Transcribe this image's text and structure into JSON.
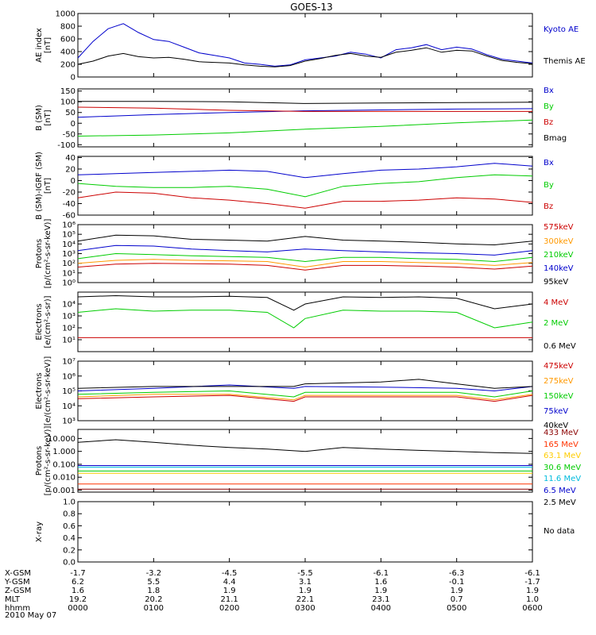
{
  "title": "GOES-13",
  "footer": {
    "rows": [
      {
        "label": "X-GSM",
        "values": [
          "-1.7",
          "-3.2",
          "-4.5",
          "-5.5",
          "-6.1",
          "-6.3",
          "-6.1"
        ]
      },
      {
        "label": "Y-GSM",
        "values": [
          "6.2",
          "5.5",
          "4.4",
          "3.1",
          "1.6",
          "-0.1",
          "-1.7"
        ]
      },
      {
        "label": "Z-GSM",
        "values": [
          "1.6",
          "1.8",
          "1.9",
          "1.9",
          "1.9",
          "1.9",
          "1.9"
        ]
      },
      {
        "label": "MLT",
        "values": [
          "19.2",
          "20.2",
          "21.1",
          "22.1",
          "23.1",
          "0.7",
          "1.0"
        ]
      },
      {
        "label": "hhmm",
        "values": [
          "0000",
          "0100",
          "0200",
          "0300",
          "0400",
          "0500",
          "0600"
        ]
      }
    ],
    "date": "2010 May 07"
  },
  "chart_data": [
    {
      "type": "line",
      "scale": "linear",
      "ylabel": [
        "AE index",
        "[nT]"
      ],
      "ylim": [
        0,
        1000
      ],
      "yticks": [
        "0",
        "200",
        "400",
        "600",
        "800",
        "1000"
      ],
      "series": [
        {
          "name": "Kyoto AE",
          "color": "#0000cc",
          "x": [
            0,
            0.2,
            0.4,
            0.6,
            0.8,
            1.0,
            1.2,
            1.4,
            1.6,
            1.8,
            2.0,
            2.2,
            2.4,
            2.6,
            2.8,
            3.0,
            3.2,
            3.4,
            3.6,
            3.8,
            4.0,
            4.2,
            4.4,
            4.6,
            4.8,
            5.0,
            5.2,
            5.4,
            5.6,
            5.8,
            6.0
          ],
          "y": [
            300,
            560,
            760,
            840,
            700,
            590,
            560,
            470,
            380,
            340,
            300,
            220,
            200,
            170,
            190,
            270,
            300,
            330,
            390,
            360,
            300,
            430,
            460,
            510,
            430,
            470,
            440,
            350,
            280,
            250,
            220
          ]
        },
        {
          "name": "Themis AE",
          "color": "#000000",
          "x": [
            0,
            0.2,
            0.4,
            0.6,
            0.8,
            1.0,
            1.2,
            1.4,
            1.6,
            1.8,
            2.0,
            2.2,
            2.4,
            2.6,
            2.8,
            3.0,
            3.2,
            3.4,
            3.6,
            3.8,
            4.0,
            4.2,
            4.4,
            4.6,
            4.8,
            5.0,
            5.2,
            5.4,
            5.6,
            5.8,
            6.0
          ],
          "y": [
            200,
            250,
            330,
            370,
            320,
            300,
            310,
            280,
            240,
            230,
            220,
            190,
            170,
            160,
            180,
            250,
            290,
            340,
            370,
            330,
            310,
            390,
            420,
            460,
            390,
            420,
            410,
            330,
            260,
            230,
            210
          ]
        }
      ]
    },
    {
      "type": "line",
      "scale": "linear",
      "ylabel": [
        "B (SM)",
        "[nT]"
      ],
      "ylim": [
        -110,
        160
      ],
      "yticks": [
        "-100",
        "-50",
        "0",
        "50",
        "100",
        "150"
      ],
      "series": [
        {
          "name": "Bx",
          "color": "#0000cc",
          "x": [
            0,
            1,
            2,
            3,
            4,
            5,
            6
          ],
          "y": [
            28,
            40,
            50,
            58,
            62,
            66,
            68
          ]
        },
        {
          "name": "By",
          "color": "#00cc00",
          "x": [
            0,
            1,
            2,
            3,
            4,
            5,
            6
          ],
          "y": [
            -60,
            -55,
            -45,
            -28,
            -15,
            2,
            15
          ]
        },
        {
          "name": "Bz",
          "color": "#cc0000",
          "x": [
            0,
            1,
            2,
            3,
            4,
            5,
            6
          ],
          "y": [
            75,
            70,
            60,
            55,
            55,
            55,
            55
          ]
        },
        {
          "name": "Bmag",
          "color": "#000000",
          "x": [
            0,
            1,
            2,
            3,
            4,
            5,
            6
          ],
          "y": [
            102,
            102,
            100,
            92,
            94,
            96,
            98
          ]
        }
      ]
    },
    {
      "type": "line",
      "scale": "linear",
      "ylabel": [
        "B (SM)-IGRF (SM)",
        "[nT]"
      ],
      "ylim": [
        -60,
        42
      ],
      "yticks": [
        "-60",
        "-40",
        "-20",
        "0",
        "20",
        "40"
      ],
      "series": [
        {
          "name": "Bx",
          "color": "#0000cc",
          "x": [
            0,
            0.5,
            1.0,
            1.5,
            2.0,
            2.5,
            3.0,
            3.5,
            4.0,
            4.5,
            5.0,
            5.5,
            6.0
          ],
          "y": [
            10,
            12,
            14,
            16,
            18,
            16,
            5,
            12,
            18,
            20,
            24,
            30,
            25
          ]
        },
        {
          "name": "By",
          "color": "#00cc00",
          "x": [
            0,
            0.5,
            1.0,
            1.5,
            2.0,
            2.5,
            3.0,
            3.5,
            4.0,
            4.5,
            5.0,
            5.5,
            6.0
          ],
          "y": [
            -5,
            -10,
            -12,
            -12,
            -10,
            -15,
            -28,
            -10,
            -5,
            -2,
            5,
            10,
            8
          ]
        },
        {
          "name": "Bz",
          "color": "#cc0000",
          "x": [
            0,
            0.5,
            1.0,
            1.5,
            2.0,
            2.5,
            3.0,
            3.5,
            4.0,
            4.5,
            5.0,
            5.5,
            6.0
          ],
          "y": [
            -30,
            -20,
            -22,
            -30,
            -34,
            -40,
            -48,
            -36,
            -36,
            -34,
            -30,
            -32,
            -38
          ]
        }
      ]
    },
    {
      "type": "line",
      "scale": "log",
      "ylabel": [
        "Protons",
        "[p/(cm²-s-sr-keV)]"
      ],
      "ylim": [
        1,
        1000000
      ],
      "yticks": [
        "10⁰",
        "10¹",
        "10²",
        "10³",
        "10⁴",
        "10⁵",
        "10⁶"
      ],
      "series": [
        {
          "name": "575keV",
          "color": "#cc0000",
          "x": [
            0,
            0.5,
            1.0,
            1.5,
            2.0,
            2.5,
            3.0,
            3.5,
            4.0,
            4.5,
            5.0,
            5.5,
            6.0
          ],
          "y": [
            40,
            80,
            100,
            90,
            80,
            60,
            20,
            60,
            60,
            50,
            40,
            25,
            50
          ]
        },
        {
          "name": "300keV",
          "color": "#ff9900",
          "x": [
            0,
            0.5,
            1.0,
            1.5,
            2.0,
            2.5,
            3.0,
            3.5,
            4.0,
            4.5,
            5.0,
            5.5,
            6.0
          ],
          "y": [
            100,
            200,
            250,
            200,
            180,
            150,
            40,
            150,
            150,
            120,
            100,
            60,
            120
          ]
        },
        {
          "name": "210keV",
          "color": "#00cc00",
          "x": [
            0,
            0.5,
            1.0,
            1.5,
            2.0,
            2.5,
            3.0,
            3.5,
            4.0,
            4.5,
            5.0,
            5.5,
            6.0
          ],
          "y": [
            300,
            1000,
            800,
            600,
            500,
            400,
            150,
            400,
            400,
            300,
            250,
            150,
            400
          ]
        },
        {
          "name": "140keV",
          "color": "#0000cc",
          "x": [
            0,
            0.5,
            1.0,
            1.5,
            2.0,
            2.5,
            3.0,
            3.5,
            4.0,
            4.5,
            5.0,
            5.5,
            6.0
          ],
          "y": [
            2000,
            7000,
            6000,
            3000,
            2000,
            1500,
            3000,
            2000,
            1500,
            1200,
            1000,
            700,
            2000
          ]
        },
        {
          "name": "95keV",
          "color": "#000000",
          "x": [
            0,
            0.5,
            1.0,
            1.5,
            2.0,
            2.5,
            3.0,
            3.5,
            4.0,
            4.5,
            5.0,
            5.5,
            6.0
          ],
          "y": [
            20000,
            80000,
            70000,
            30000,
            25000,
            20000,
            60000,
            25000,
            20000,
            15000,
            10000,
            8000,
            20000
          ]
        }
      ]
    },
    {
      "type": "line",
      "scale": "log",
      "ylabel": [
        "Electrons",
        "[e/(cm²-s-sr)]"
      ],
      "ylim": [
        1,
        100000
      ],
      "yticks": [
        "10¹",
        "10²",
        "10³",
        "10⁴"
      ],
      "series": [
        {
          "name": "4 MeV",
          "color": "#cc0000",
          "x": [
            0,
            1,
            2,
            3,
            4,
            5,
            6
          ],
          "y": [
            15,
            15,
            15,
            15,
            15,
            15,
            15
          ]
        },
        {
          "name": "2 MeV",
          "color": "#00cc00",
          "x": [
            0,
            0.5,
            1.0,
            1.5,
            2.0,
            2.5,
            2.85,
            3.0,
            3.5,
            4.0,
            4.5,
            5.0,
            5.5,
            6.0
          ],
          "y": [
            2000,
            4000,
            2500,
            3000,
            3000,
            2000,
            100,
            600,
            3000,
            2500,
            2500,
            2000,
            100,
            300
          ]
        },
        {
          "name": "0.6 MeV",
          "color": "#000000",
          "x": [
            0,
            0.5,
            1.0,
            1.5,
            2.0,
            2.5,
            2.85,
            3.0,
            3.5,
            4.0,
            4.5,
            5.0,
            5.5,
            6.0
          ],
          "y": [
            40000,
            50000,
            40000,
            40000,
            45000,
            35000,
            3000,
            10000,
            40000,
            35000,
            40000,
            30000,
            4000,
            10000
          ]
        }
      ]
    },
    {
      "type": "line",
      "scale": "log",
      "ylabel": [
        "Electrons",
        "[e/(cm²-s-sr-keV)]"
      ],
      "ylim": [
        1000,
        10000000
      ],
      "yticks": [
        "10³",
        "10⁴",
        "10⁵",
        "10⁶",
        "10⁷"
      ],
      "series": [
        {
          "name": "475keV",
          "color": "#cc0000",
          "x": [
            0,
            1,
            2,
            2.85,
            3.0,
            4,
            5,
            5.5,
            6
          ],
          "y": [
            30000,
            40000,
            50000,
            20000,
            40000,
            40000,
            40000,
            20000,
            50000
          ]
        },
        {
          "name": "275keV",
          "color": "#ff9900",
          "x": [
            0,
            1,
            2,
            2.85,
            3.0,
            4,
            5,
            5.5,
            6
          ],
          "y": [
            40000,
            60000,
            60000,
            25000,
            50000,
            50000,
            50000,
            25000,
            60000
          ]
        },
        {
          "name": "150keV",
          "color": "#00cc00",
          "x": [
            0,
            1,
            2,
            2.85,
            3.0,
            4,
            5,
            5.5,
            6
          ],
          "y": [
            60000,
            80000,
            100000,
            40000,
            80000,
            80000,
            80000,
            40000,
            100000
          ]
        },
        {
          "name": "75keV",
          "color": "#0000cc",
          "x": [
            0,
            1,
            2,
            2.85,
            3.0,
            4,
            5,
            5.5,
            6
          ],
          "y": [
            100000,
            150000,
            250000,
            150000,
            200000,
            180000,
            150000,
            100000,
            200000
          ]
        },
        {
          "name": "40keV",
          "color": "#000000",
          "x": [
            0,
            1,
            2,
            2.85,
            3.0,
            4,
            4.5,
            5,
            5.5,
            6
          ],
          "y": [
            150000,
            200000,
            200000,
            200000,
            300000,
            400000,
            600000,
            300000,
            150000,
            200000
          ]
        }
      ]
    },
    {
      "type": "line",
      "scale": "log",
      "ylabel": [
        "Protons",
        "[p/(cm²-s-sr-keV)]"
      ],
      "ylim": [
        0.0007,
        50
      ],
      "yticks": [
        "0.001",
        "0.010",
        "0.100",
        "1.000",
        "10.000"
      ],
      "series": [
        {
          "name": "433 MeV",
          "color": "#8b0000",
          "x": [
            0,
            6
          ],
          "y": [
            0.0012,
            0.0012
          ]
        },
        {
          "name": "165 MeV",
          "color": "#ff3300",
          "x": [
            0,
            6
          ],
          "y": [
            0.003,
            0.003
          ]
        },
        {
          "name": "63.1 MeV",
          "color": "#ffcc00",
          "x": [
            0,
            6
          ],
          "y": [
            0.02,
            0.02
          ]
        },
        {
          "name": "30.6 MeV",
          "color": "#00cc00",
          "x": [
            0,
            6
          ],
          "y": [
            0.03,
            0.03
          ]
        },
        {
          "name": "11.6 MeV",
          "color": "#00bbdd",
          "x": [
            0,
            6
          ],
          "y": [
            0.06,
            0.06
          ]
        },
        {
          "name": "6.5 MeV",
          "color": "#0000cc",
          "x": [
            0,
            6
          ],
          "y": [
            0.08,
            0.08
          ]
        },
        {
          "name": "2.5 MeV",
          "color": "#000000",
          "x": [
            0,
            0.5,
            1.0,
            1.5,
            2.0,
            2.5,
            3.0,
            3.5,
            4.0,
            4.5,
            5.0,
            5.5,
            6.0
          ],
          "y": [
            5,
            8,
            5,
            3,
            2,
            1.5,
            1.0,
            2,
            1.5,
            1.2,
            1,
            0.8,
            0.7
          ]
        }
      ]
    },
    {
      "type": "line",
      "scale": "linear",
      "ylabel": [
        "X-ray"
      ],
      "ylim": [
        0,
        1.0
      ],
      "yticks": [
        "0.0",
        "0.2",
        "0.4",
        "0.6",
        "0.8",
        "1.0"
      ],
      "annotation": "No data",
      "series": []
    }
  ]
}
